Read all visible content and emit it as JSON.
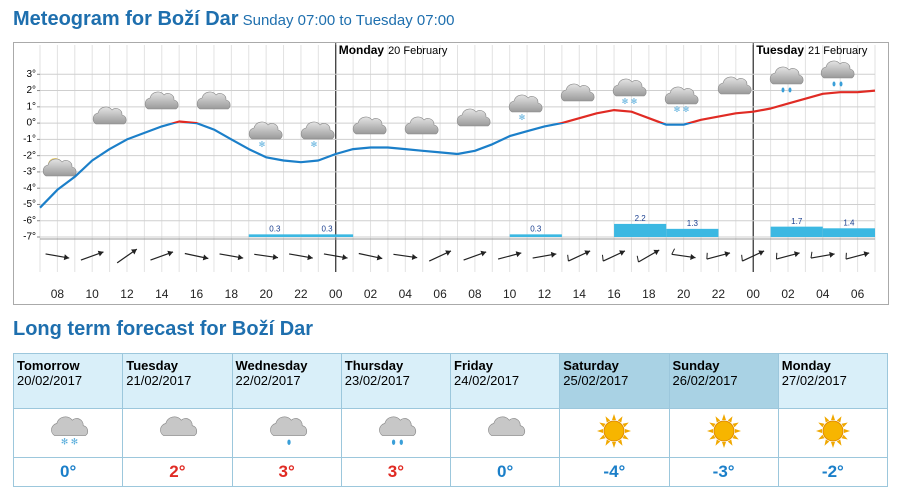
{
  "meteogram": {
    "title": "Meteogram for Boží Dar",
    "subtitle": "Sunday 07:00 to Tuesday 07:00",
    "chart_data": {
      "type": "line",
      "categories": [
        null,
        "08",
        null,
        "10",
        null,
        "12",
        null,
        "14",
        null,
        "16",
        null,
        "18",
        null,
        "20",
        null,
        "22",
        null,
        "00",
        null,
        "02",
        null,
        "04",
        null,
        "06",
        null,
        "08",
        null,
        "10",
        null,
        "12",
        null,
        "14",
        null,
        "16",
        null,
        "18",
        null,
        "20",
        null,
        "22",
        null,
        "00",
        null,
        "02",
        null,
        "04",
        null,
        "06",
        null
      ],
      "values": [
        -5.2,
        -4.1,
        -3.3,
        -2.3,
        -1.6,
        -1.0,
        -0.6,
        -0.2,
        0.1,
        0.0,
        -0.4,
        -1.0,
        -1.6,
        -2.1,
        -2.3,
        -2.4,
        -2.3,
        -1.9,
        -1.6,
        -1.5,
        -1.5,
        -1.6,
        -1.7,
        -1.8,
        -1.9,
        -1.7,
        -1.3,
        -0.8,
        -0.5,
        -0.2,
        0.0,
        0.3,
        0.6,
        0.8,
        0.7,
        0.3,
        -0.1,
        -0.1,
        0.2,
        0.4,
        0.6,
        0.7,
        0.9,
        1.2,
        1.5,
        1.8,
        1.9,
        1.9,
        2.0
      ],
      "color_above": "#e02b24",
      "color_below": "#1b7fc9",
      "ylim": [
        -7,
        4.8
      ],
      "yticks": [
        {
          "value": 3,
          "label": "3°"
        },
        {
          "value": 2,
          "label": "2°"
        },
        {
          "value": 1,
          "label": "1°"
        },
        {
          "value": 0,
          "label": "0°"
        },
        {
          "value": -1,
          "label": "-1°"
        },
        {
          "value": -2,
          "label": "-2°"
        },
        {
          "value": -3,
          "label": "-3°"
        },
        {
          "value": -4,
          "label": "-4°"
        },
        {
          "value": -5,
          "label": "-5°"
        },
        {
          "value": -6,
          "label": "-6°"
        },
        {
          "value": -7,
          "label": "-7°"
        }
      ],
      "grid": true,
      "precipitation": {
        "color": "#3cb8e2",
        "label_color": "#1a3f8f",
        "values": [
          0,
          0,
          0,
          0,
          0.3,
          0.3,
          0,
          0,
          0,
          0.3,
          0,
          2.2,
          1.3,
          0,
          1.7,
          1.4
        ]
      },
      "day_markers": [
        {
          "name": "Monday",
          "date": "20 February"
        },
        {
          "name": "Tuesday",
          "date": "21 February"
        }
      ]
    }
  },
  "long_term": {
    "title": "Long term forecast for Boží Dar",
    "days": [
      {
        "day": "Tomorrow",
        "date": "20/02/2017",
        "temp": "0°",
        "color": "#1b7fc9"
      },
      {
        "day": "Tuesday",
        "date": "21/02/2017",
        "temp": "2°",
        "color": "#e02b24"
      },
      {
        "day": "Wednesday",
        "date": "22/02/2017",
        "temp": "3°",
        "color": "#e02b24"
      },
      {
        "day": "Thursday",
        "date": "23/02/2017",
        "temp": "3°",
        "color": "#e02b24"
      },
      {
        "day": "Friday",
        "date": "24/02/2017",
        "temp": "0°",
        "color": "#1b7fc9"
      },
      {
        "day": "Saturday",
        "date": "25/02/2017",
        "temp": "-4°",
        "color": "#1b7fc9"
      },
      {
        "day": "Sunday",
        "date": "26/02/2017",
        "temp": "-3°",
        "color": "#1b7fc9"
      },
      {
        "day": "Monday",
        "date": "27/02/2017",
        "temp": "-2°",
        "color": "#1b7fc9"
      }
    ]
  }
}
